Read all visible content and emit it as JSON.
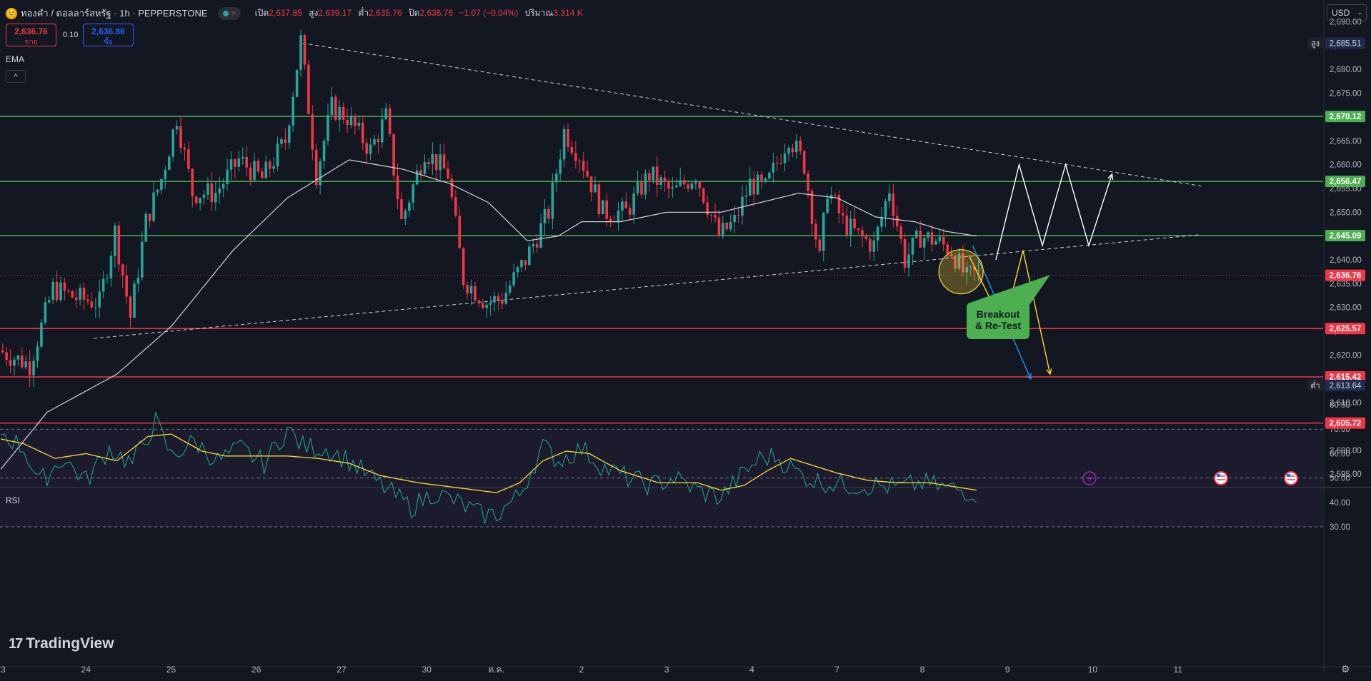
{
  "header": {
    "symbol_title": "ทองคำ / ดอลลาร์สหรัฐ · 1h · PEPPERSTONE",
    "ohlc": [
      {
        "label": "เปิด",
        "value": "2,637.85"
      },
      {
        "label": "สูง",
        "value": "2,639.17"
      },
      {
        "label": "ต่ำ",
        "value": "2,635.76"
      },
      {
        "label": "ปิด",
        "value": "2,636.76"
      }
    ],
    "change": "−1.07 (−0.04%)",
    "volume_label": "ปริมาณ",
    "volume_value": "3.314 K",
    "wave_glyph": "≈",
    "sym_glyph": "😊"
  },
  "trade": {
    "sell_price": "2,636.76",
    "sell_label": "ขาย",
    "buy_price": "2,636.86",
    "buy_label": "ซื้อ",
    "spread": "0.10"
  },
  "indicators": {
    "ema_label": "EMA",
    "rsi_label": "RSI",
    "collapse_glyph": "^"
  },
  "currency": {
    "label": "USD",
    "chev": "⌄"
  },
  "logo": {
    "text": "TradingView",
    "mark": "17"
  },
  "settings": {
    "glyph": "⚙"
  },
  "colors": {
    "background": "#131722",
    "up": "#26a69a",
    "down": "#f23645",
    "support": "#4caf50",
    "resistance": "#f23645",
    "ema": "#d1d4dc",
    "rsi": "#22ab94",
    "rsi_ma": "#fdd835",
    "proj_white": "#ffffff",
    "proj_yellow": "#fdd835",
    "proj_blue": "#2196f3",
    "annotation": "#4caf50"
  },
  "chart_data": {
    "type": "candlestick",
    "price_axis": {
      "ticks": [
        2595,
        2600,
        2610,
        2615,
        2620,
        2625,
        2630,
        2635,
        2640,
        2645,
        2650,
        2655,
        2660,
        2665,
        2670,
        2675,
        2680,
        2685,
        2690
      ],
      "tick_labels": [
        "2,595.00",
        "2,600.00",
        "2,610.00",
        "2,615.00",
        "2,620.00",
        "2,625.00",
        "2,630.00",
        "2,635.00",
        "2,640.00",
        "2,645.00",
        "2,650.00",
        "2,655.00",
        "2,660.00",
        "2,665.00",
        "2,670.00",
        "2,675.00",
        "2,680.00",
        "2,685.00",
        "2,690.00"
      ]
    },
    "time_labels": [
      {
        "label": "23",
        "t": 0
      },
      {
        "label": "24",
        "t": 22
      },
      {
        "label": "25",
        "t": 44
      },
      {
        "label": "26",
        "t": 66
      },
      {
        "label": "27",
        "t": 88
      },
      {
        "label": "30",
        "t": 110
      },
      {
        "label": "ต.ค.",
        "t": 128
      },
      {
        "label": "2",
        "t": 150
      },
      {
        "label": "3",
        "t": 172
      },
      {
        "label": "4",
        "t": 194
      },
      {
        "label": "7",
        "t": 216
      },
      {
        "label": "8",
        "t": 238
      },
      {
        "label": "9",
        "t": 260
      },
      {
        "label": "10",
        "t": 282
      },
      {
        "label": "11",
        "t": 304
      }
    ],
    "candle_count": 253,
    "waypoints": [
      [
        0,
        2621
      ],
      [
        8,
        2618
      ],
      [
        14,
        2634
      ],
      [
        20,
        2632
      ],
      [
        26,
        2631
      ],
      [
        30,
        2646
      ],
      [
        34,
        2628
      ],
      [
        38,
        2648
      ],
      [
        42,
        2657
      ],
      [
        46,
        2670
      ],
      [
        50,
        2654
      ],
      [
        56,
        2654
      ],
      [
        62,
        2661
      ],
      [
        68,
        2657
      ],
      [
        74,
        2665
      ],
      [
        78,
        2686
      ],
      [
        82,
        2658
      ],
      [
        86,
        2672
      ],
      [
        90,
        2670
      ],
      [
        96,
        2663
      ],
      [
        100,
        2670
      ],
      [
        104,
        2648
      ],
      [
        110,
        2663
      ],
      [
        116,
        2658
      ],
      [
        120,
        2636
      ],
      [
        126,
        2631
      ],
      [
        130,
        2632
      ],
      [
        136,
        2640
      ],
      [
        142,
        2650
      ],
      [
        146,
        2667
      ],
      [
        150,
        2662
      ],
      [
        156,
        2650
      ],
      [
        162,
        2650
      ],
      [
        168,
        2658
      ],
      [
        174,
        2654
      ],
      [
        180,
        2658
      ],
      [
        186,
        2645
      ],
      [
        190,
        2648
      ],
      [
        194,
        2656
      ],
      [
        198,
        2655
      ],
      [
        204,
        2666
      ],
      [
        208,
        2660
      ],
      [
        212,
        2640
      ],
      [
        214,
        2655
      ],
      [
        218,
        2648
      ],
      [
        222,
        2645
      ],
      [
        226,
        2643
      ],
      [
        230,
        2655
      ],
      [
        234,
        2640
      ],
      [
        238,
        2645
      ],
      [
        242,
        2644
      ],
      [
        246,
        2642
      ],
      [
        248,
        2639
      ],
      [
        250,
        2636
      ],
      [
        252,
        2637
      ]
    ],
    "ema_waypoints": [
      [
        0,
        2596
      ],
      [
        12,
        2608
      ],
      [
        30,
        2616
      ],
      [
        44,
        2626
      ],
      [
        60,
        2642
      ],
      [
        74,
        2653
      ],
      [
        90,
        2661
      ],
      [
        104,
        2659
      ],
      [
        116,
        2656
      ],
      [
        126,
        2652
      ],
      [
        136,
        2644
      ],
      [
        144,
        2645
      ],
      [
        150,
        2648
      ],
      [
        160,
        2648
      ],
      [
        172,
        2650
      ],
      [
        186,
        2650
      ],
      [
        196,
        2652
      ],
      [
        206,
        2654
      ],
      [
        216,
        2653
      ],
      [
        226,
        2649
      ],
      [
        236,
        2648
      ],
      [
        244,
        2646
      ],
      [
        252,
        2645
      ]
    ],
    "annotations": {
      "resistance_levels": [
        2670.12,
        2656.47,
        2645.09
      ],
      "support_levels": [
        2625.57,
        2615.42,
        2605.72
      ],
      "level_labels": [
        "2,670.12",
        "2,656.47",
        "2,645.09",
        "2,625.57",
        "2,615.42",
        "2,605.72"
      ],
      "current_price": 2636.76,
      "current_label": "2,636.76",
      "high": {
        "tag": "สูง",
        "price": 2685.51,
        "label": "2,685.51"
      },
      "low": {
        "tag": "ต่ำ",
        "price": 2613.64,
        "label": "2,613.64"
      },
      "callout": [
        "Breakout",
        "& Re-Test"
      ],
      "falling_trendline": [
        [
          78,
          2685.5
        ],
        [
          310,
          2655.5
        ]
      ],
      "rising_trendline": [
        [
          24,
          2623.5
        ],
        [
          310,
          2645.3
        ]
      ],
      "white_projection": [
        [
          257,
          2640
        ],
        [
          263,
          2660
        ],
        [
          269,
          2643
        ],
        [
          275,
          2660
        ],
        [
          281,
          2643
        ],
        [
          287,
          2658
        ]
      ],
      "yellow_projection": [
        [
          250,
          2641
        ],
        [
          259,
          2626
        ],
        [
          264,
          2642
        ],
        [
          271,
          2616
        ]
      ],
      "blue_projection": [
        [
          251,
          2643
        ],
        [
          266,
          2615
        ]
      ]
    },
    "rsi": {
      "ticks": [
        30,
        40,
        50,
        60,
        70,
        80
      ],
      "tick_labels": [
        "30.00",
        "40.00",
        "50.00",
        "60.00",
        "70.00",
        "80.00"
      ],
      "band": [
        30,
        70
      ],
      "waypoints": [
        [
          0,
          69
        ],
        [
          6,
          62
        ],
        [
          10,
          48
        ],
        [
          16,
          58
        ],
        [
          22,
          49
        ],
        [
          28,
          62
        ],
        [
          34,
          56
        ],
        [
          40,
          73
        ],
        [
          44,
          59
        ],
        [
          50,
          65
        ],
        [
          56,
          57
        ],
        [
          62,
          62
        ],
        [
          68,
          56
        ],
        [
          74,
          70
        ],
        [
          78,
          63
        ],
        [
          84,
          62
        ],
        [
          90,
          57
        ],
        [
          94,
          52
        ],
        [
          100,
          45
        ],
        [
          106,
          38
        ],
        [
          112,
          44
        ],
        [
          118,
          40
        ],
        [
          124,
          35
        ],
        [
          128,
          35
        ],
        [
          134,
          43
        ],
        [
          140,
          63
        ],
        [
          144,
          57
        ],
        [
          150,
          62
        ],
        [
          156,
          54
        ],
        [
          162,
          50
        ],
        [
          168,
          47
        ],
        [
          174,
          50
        ],
        [
          180,
          45
        ],
        [
          186,
          42
        ],
        [
          190,
          49
        ],
        [
          196,
          58
        ],
        [
          200,
          59
        ],
        [
          206,
          52
        ],
        [
          210,
          49
        ],
        [
          214,
          48
        ],
        [
          220,
          47
        ],
        [
          226,
          47
        ],
        [
          232,
          46
        ],
        [
          238,
          48
        ],
        [
          244,
          46
        ],
        [
          248,
          45
        ],
        [
          252,
          44
        ]
      ],
      "ma_waypoints": [
        [
          0,
          66
        ],
        [
          6,
          64
        ],
        [
          14,
          58
        ],
        [
          22,
          60
        ],
        [
          30,
          57
        ],
        [
          38,
          67
        ],
        [
          44,
          68
        ],
        [
          52,
          61
        ],
        [
          58,
          59
        ],
        [
          66,
          59
        ],
        [
          74,
          59
        ],
        [
          82,
          58
        ],
        [
          90,
          56
        ],
        [
          98,
          51
        ],
        [
          108,
          48
        ],
        [
          118,
          46
        ],
        [
          128,
          44
        ],
        [
          134,
          48
        ],
        [
          140,
          57
        ],
        [
          146,
          61
        ],
        [
          152,
          60
        ],
        [
          160,
          53
        ],
        [
          170,
          48
        ],
        [
          180,
          48
        ],
        [
          186,
          45
        ],
        [
          192,
          47
        ],
        [
          198,
          53
        ],
        [
          204,
          58
        ],
        [
          208,
          56
        ],
        [
          216,
          52
        ],
        [
          224,
          49
        ],
        [
          232,
          48
        ],
        [
          240,
          48
        ],
        [
          252,
          45
        ]
      ]
    }
  }
}
